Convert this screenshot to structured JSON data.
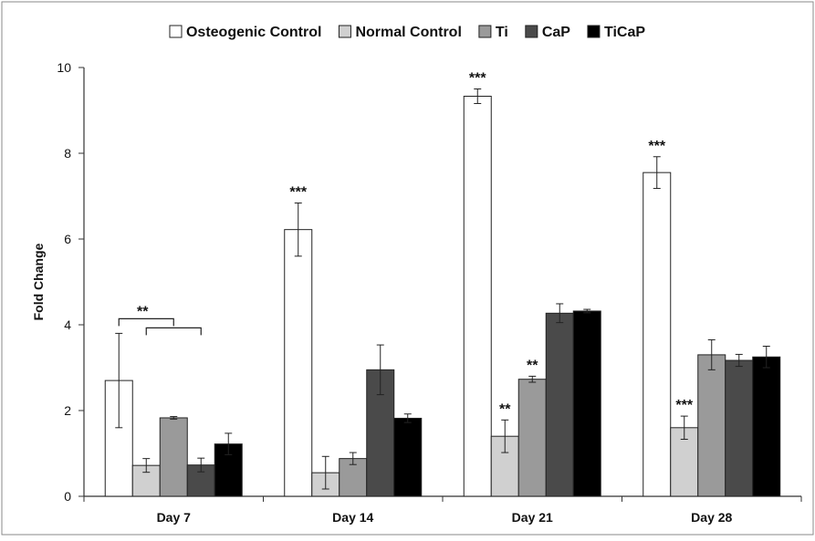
{
  "chart_data": {
    "type": "bar",
    "title": "",
    "xlabel": "",
    "ylabel": "Fold Change",
    "ylim": [
      0,
      10
    ],
    "yticks": [
      0,
      2,
      4,
      6,
      8,
      10
    ],
    "grid": false,
    "legend_position": "top",
    "categories": [
      "Day 7",
      "Day 14",
      "Day 21",
      "Day 28"
    ],
    "series": [
      {
        "name": "Osteogenic Control",
        "color": "#ffffff",
        "values": [
          2.7,
          6.22,
          9.33,
          7.55
        ],
        "errors": [
          1.1,
          0.62,
          0.17,
          0.37
        ]
      },
      {
        "name": "Normal Control",
        "color": "#d0d0d0",
        "values": [
          0.72,
          0.55,
          1.4,
          1.6
        ],
        "errors": [
          0.16,
          0.38,
          0.38,
          0.27
        ]
      },
      {
        "name": "Ti",
        "color": "#9a9a9a",
        "values": [
          1.83,
          0.88,
          2.73,
          3.3
        ],
        "errors": [
          0.03,
          0.14,
          0.07,
          0.35
        ]
      },
      {
        "name": "CaP",
        "color": "#4a4a4a",
        "values": [
          0.73,
          2.95,
          4.27,
          3.17
        ],
        "errors": [
          0.16,
          0.58,
          0.22,
          0.14
        ]
      },
      {
        "name": "TiCaP",
        "color": "#000000",
        "values": [
          1.22,
          1.82,
          4.32,
          3.25
        ],
        "errors": [
          0.25,
          0.1,
          0.04,
          0.25
        ]
      }
    ],
    "significance": [
      {
        "category": 0,
        "series": 0,
        "label": "**",
        "type": "bracket"
      },
      {
        "category": 1,
        "series": 0,
        "label": "***"
      },
      {
        "category": 2,
        "series": 0,
        "label": "***"
      },
      {
        "category": 2,
        "series": 1,
        "label": "**"
      },
      {
        "category": 2,
        "series": 2,
        "label": "**"
      },
      {
        "category": 3,
        "series": 0,
        "label": "***"
      },
      {
        "category": 3,
        "series": 1,
        "label": "***"
      }
    ]
  }
}
